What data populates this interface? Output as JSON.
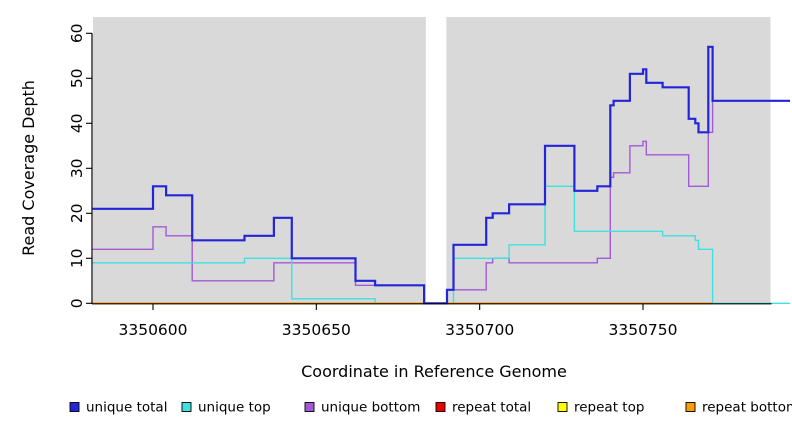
{
  "chart_data": {
    "type": "line",
    "subtype": "step-coverage-plot",
    "title": "",
    "xlabel": "Coordinate in Reference Genome",
    "ylabel": "Read Coverage Depth",
    "xlim": [
      3350581.5,
      3350789
    ],
    "ylim": [
      0,
      60
    ],
    "x_ticks": [
      3350600,
      3350650,
      3350700,
      3350750
    ],
    "x_tick_labels": [
      "3350600",
      "3350650",
      "3350700",
      "3350750"
    ],
    "y_ticks": [
      0,
      10,
      20,
      30,
      40,
      50,
      60
    ],
    "y_tick_labels": [
      "0",
      "10",
      "20",
      "30",
      "40",
      "50",
      "60"
    ],
    "grid": false,
    "plot_background": "#d9d9d9",
    "masked_region": {
      "x_start": 3350683.5,
      "x_end": 3350689.8,
      "color": "#ffffff"
    },
    "axis_color": "#000000",
    "series": [
      {
        "name": "repeat total",
        "color": "#e80000",
        "width": 1.4,
        "end": 3350771.3,
        "steps": [
          [
            3350581.5,
            0
          ]
        ]
      },
      {
        "name": "repeat top",
        "color": "#ffff00",
        "width": 1.4,
        "end": 3350771.3,
        "steps": [
          [
            3350581.5,
            0
          ]
        ]
      },
      {
        "name": "unique bottom",
        "color": "#a45ad6",
        "width": 1.4,
        "end": 3350795,
        "steps": [
          [
            3350581.5,
            12
          ],
          [
            3350600,
            17
          ],
          [
            3350604,
            15
          ],
          [
            3350612,
            5
          ],
          [
            3350637,
            9
          ],
          [
            3350662,
            4
          ],
          [
            3350683,
            0
          ],
          [
            3350690,
            3
          ],
          [
            3350702,
            9
          ],
          [
            3350704,
            10
          ],
          [
            3350709,
            9
          ],
          [
            3350736,
            10
          ],
          [
            3350740,
            28
          ],
          [
            3350741,
            29
          ],
          [
            3350746,
            35
          ],
          [
            3350750,
            36
          ],
          [
            3350751,
            33
          ],
          [
            3350764,
            26
          ],
          [
            3350770,
            38
          ],
          [
            3350771.3,
            45
          ]
        ]
      },
      {
        "name": "unique top",
        "color": "#3fe0e0",
        "width": 1.4,
        "end": 3350795,
        "steps": [
          [
            3350581.5,
            9
          ],
          [
            3350628,
            10
          ],
          [
            3350642.5,
            1
          ],
          [
            3350668,
            0
          ],
          [
            3350692,
            10
          ],
          [
            3350709,
            13
          ],
          [
            3350720,
            26
          ],
          [
            3350729,
            16
          ],
          [
            3350756,
            15
          ],
          [
            3350766,
            14
          ],
          [
            3350767,
            12
          ],
          [
            3350771.3,
            0
          ]
        ]
      },
      {
        "name": "repeat bottom",
        "color": "#ff9c00",
        "width": 1.8,
        "end": 3350771.3,
        "steps": [
          [
            3350581.5,
            0
          ]
        ]
      },
      {
        "name": "unique total",
        "color": "#2424d9",
        "width": 2.2,
        "end": 3350795,
        "steps": [
          [
            3350581.5,
            21
          ],
          [
            3350600,
            26
          ],
          [
            3350604,
            24
          ],
          [
            3350612,
            14
          ],
          [
            3350628,
            15
          ],
          [
            3350637,
            19
          ],
          [
            3350642.5,
            10
          ],
          [
            3350662,
            5
          ],
          [
            3350668,
            4
          ],
          [
            3350683,
            0
          ],
          [
            3350690,
            3
          ],
          [
            3350692,
            13
          ],
          [
            3350702,
            19
          ],
          [
            3350704,
            20
          ],
          [
            3350709,
            22
          ],
          [
            3350720,
            35
          ],
          [
            3350729,
            25
          ],
          [
            3350736,
            26
          ],
          [
            3350740,
            44
          ],
          [
            3350741,
            45
          ],
          [
            3350746,
            51
          ],
          [
            3350750,
            52
          ],
          [
            3350751,
            49
          ],
          [
            3350756,
            48
          ],
          [
            3350764,
            41
          ],
          [
            3350766,
            40
          ],
          [
            3350767,
            38
          ],
          [
            3350770,
            57
          ],
          [
            3350771.3,
            45
          ]
        ]
      }
    ],
    "legend_position": "bottom",
    "legend": [
      {
        "label": "unique total",
        "color": "#2424d9"
      },
      {
        "label": "unique top",
        "color": "#3fe0e0"
      },
      {
        "label": "unique bottom",
        "color": "#a45ad6"
      },
      {
        "label": "repeat total",
        "color": "#e80000"
      },
      {
        "label": "repeat top",
        "color": "#ffff00"
      },
      {
        "label": "repeat bottom",
        "color": "#ff9c00"
      }
    ]
  }
}
